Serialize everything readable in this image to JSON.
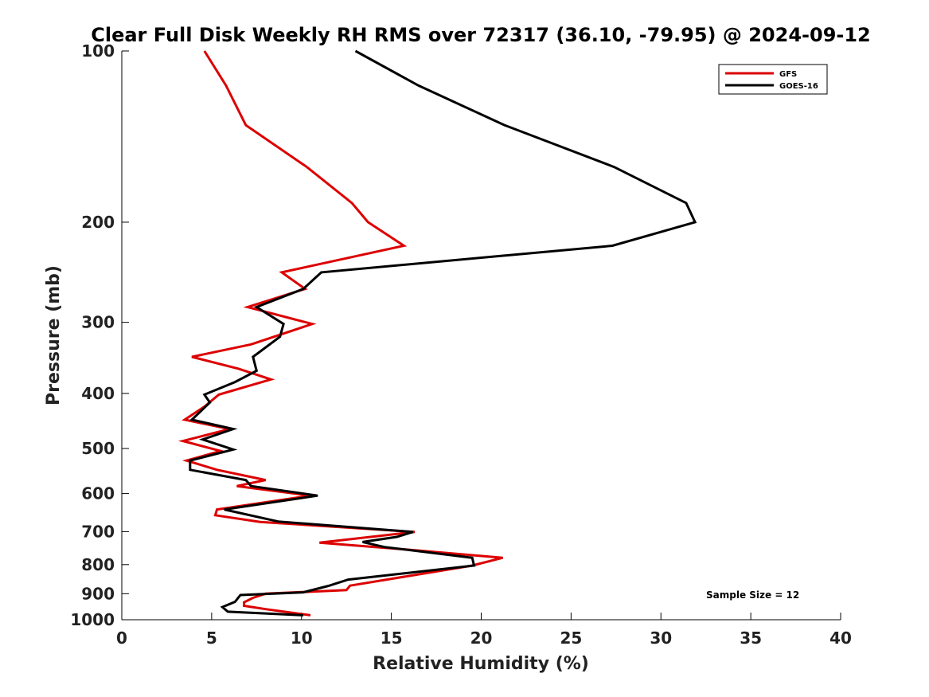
{
  "chart_data": {
    "type": "line",
    "title": "Clear Full Disk Weekly RH RMS over 72317 (36.10, -79.95) @ 2024-09-12",
    "xlabel": "Relative Humidity (%)",
    "ylabel": "Pressure (mb)",
    "xlim": [
      0,
      40
    ],
    "ylim": [
      1000,
      100
    ],
    "y_scale": "log",
    "x_ticks": [
      "0",
      "5",
      "10",
      "15",
      "20",
      "25",
      "30",
      "35",
      "40"
    ],
    "y_ticks": [
      "100",
      "200",
      "300",
      "400",
      "500",
      "600",
      "700",
      "800",
      "900",
      "1000"
    ],
    "grid": false,
    "legend_position": "top-right",
    "annotation": "Sample Size = 12",
    "series": [
      {
        "name": "GFS",
        "color": "#dd0000",
        "points": [
          [
            4.6,
            100
          ],
          [
            5.8,
            115
          ],
          [
            6.9,
            135
          ],
          [
            10.3,
            160
          ],
          [
            12.8,
            185
          ],
          [
            13.7,
            200
          ],
          [
            15.7,
            220
          ],
          [
            8.9,
            245
          ],
          [
            10.2,
            262
          ],
          [
            7.0,
            282
          ],
          [
            10.6,
            302
          ],
          [
            7.2,
            328
          ],
          [
            3.9,
            345
          ],
          [
            6.5,
            362
          ],
          [
            8.3,
            378
          ],
          [
            5.4,
            402
          ],
          [
            4.6,
            422
          ],
          [
            3.5,
            445
          ],
          [
            6.0,
            462
          ],
          [
            3.4,
            485
          ],
          [
            5.5,
            505
          ],
          [
            3.6,
            525
          ],
          [
            5.3,
            545
          ],
          [
            8.0,
            568
          ],
          [
            6.4,
            582
          ],
          [
            10.5,
            605
          ],
          [
            5.3,
            640
          ],
          [
            5.2,
            655
          ],
          [
            7.7,
            673
          ],
          [
            16.3,
            701
          ],
          [
            11.0,
            732
          ],
          [
            15.5,
            751
          ],
          [
            21.2,
            778
          ],
          [
            19.5,
            803
          ],
          [
            12.7,
            871
          ],
          [
            12.5,
            887
          ],
          [
            8.0,
            900
          ],
          [
            7.3,
            915
          ],
          [
            6.8,
            932
          ],
          [
            6.8,
            945
          ],
          [
            8.0,
            958
          ],
          [
            10.5,
            982
          ]
        ]
      },
      {
        "name": "GOES-16",
        "color": "#000000",
        "points": [
          [
            13.0,
            100
          ],
          [
            16.5,
            115
          ],
          [
            21.3,
            135
          ],
          [
            27.4,
            160
          ],
          [
            31.4,
            185
          ],
          [
            31.9,
            200
          ],
          [
            27.3,
            220
          ],
          [
            11.1,
            245
          ],
          [
            10.1,
            262
          ],
          [
            7.5,
            282
          ],
          [
            9.0,
            302
          ],
          [
            8.8,
            318
          ],
          [
            7.3,
            345
          ],
          [
            7.5,
            365
          ],
          [
            6.3,
            382
          ],
          [
            4.6,
            402
          ],
          [
            4.9,
            415
          ],
          [
            3.9,
            445
          ],
          [
            6.2,
            462
          ],
          [
            4.5,
            482
          ],
          [
            6.2,
            502
          ],
          [
            3.8,
            525
          ],
          [
            3.8,
            545
          ],
          [
            6.9,
            568
          ],
          [
            7.2,
            582
          ],
          [
            10.9,
            605
          ],
          [
            5.7,
            640
          ],
          [
            8.7,
            672
          ],
          [
            16.2,
            701
          ],
          [
            15.3,
            715
          ],
          [
            13.4,
            730
          ],
          [
            14.6,
            745
          ],
          [
            19.5,
            778
          ],
          [
            19.6,
            803
          ],
          [
            12.6,
            850
          ],
          [
            11.5,
            872
          ],
          [
            10.1,
            895
          ],
          [
            6.6,
            905
          ],
          [
            6.3,
            930
          ],
          [
            5.6,
            950
          ],
          [
            5.9,
            968
          ],
          [
            10.1,
            982
          ]
        ]
      }
    ]
  }
}
